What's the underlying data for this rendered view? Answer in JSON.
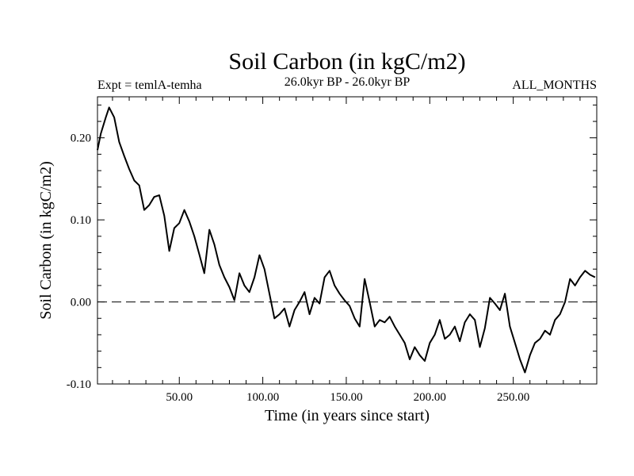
{
  "chart_data": {
    "type": "line",
    "title": "Soil Carbon (in kgC/m2)",
    "subtitle_left": "Expt = temlA-temha",
    "subtitle_center": "26.0kyr BP - 26.0kyr BP",
    "subtitle_right": "ALL_MONTHS",
    "xlabel": "Time (in years since start)",
    "ylabel": "Soil Carbon (in kgC/m2)",
    "xlim": [
      1,
      300
    ],
    "ylim": [
      -0.1,
      0.25
    ],
    "xticks": [
      50,
      100,
      150,
      200,
      250
    ],
    "xtick_labels": [
      "50.00",
      "100.00",
      "150.00",
      "200.00",
      "250.00"
    ],
    "yticks": [
      -0.1,
      0.0,
      0.1,
      0.2
    ],
    "ytick_labels": [
      "-0.10",
      "0.00",
      "0.10",
      "0.20"
    ],
    "zero_line": "dashed",
    "grid": false,
    "line_color": "#000000",
    "series": [
      {
        "x": [
          1,
          3,
          6,
          8,
          11,
          14,
          17,
          20,
          23,
          26,
          29,
          32,
          35,
          38,
          41,
          44,
          47,
          50,
          53,
          56,
          59,
          62,
          65,
          68,
          71,
          74,
          77,
          80,
          83,
          86,
          89,
          92,
          95,
          98,
          101,
          104,
          107,
          110,
          113,
          116,
          119,
          122,
          125,
          128,
          131,
          134,
          137,
          140,
          143,
          146,
          149,
          152,
          155,
          158,
          161,
          164,
          167,
          170,
          173,
          176,
          179,
          182,
          185,
          188,
          191,
          194,
          197,
          200,
          203,
          206,
          209,
          212,
          215,
          218,
          221,
          224,
          227,
          230,
          233,
          236,
          239,
          242,
          245,
          248,
          251,
          254,
          257,
          260,
          263,
          266,
          269,
          272,
          275,
          278,
          281,
          284,
          287,
          290,
          293,
          296,
          299
        ],
        "y": [
          0.185,
          0.205,
          0.225,
          0.237,
          0.225,
          0.195,
          0.178,
          0.162,
          0.148,
          0.142,
          0.112,
          0.118,
          0.128,
          0.13,
          0.105,
          0.062,
          0.09,
          0.096,
          0.112,
          0.098,
          0.08,
          0.058,
          0.035,
          0.088,
          0.07,
          0.045,
          0.03,
          0.018,
          0.002,
          0.035,
          0.02,
          0.012,
          0.03,
          0.057,
          0.04,
          0.01,
          -0.02,
          -0.015,
          -0.008,
          -0.03,
          -0.01,
          0.0,
          0.012,
          -0.015,
          0.005,
          -0.002,
          0.03,
          0.038,
          0.02,
          0.01,
          0.002,
          -0.005,
          -0.02,
          -0.03,
          0.028,
          0.0,
          -0.03,
          -0.022,
          -0.025,
          -0.018,
          -0.03,
          -0.04,
          -0.05,
          -0.07,
          -0.055,
          -0.065,
          -0.072,
          -0.05,
          -0.04,
          -0.022,
          -0.045,
          -0.04,
          -0.03,
          -0.048,
          -0.025,
          -0.015,
          -0.022,
          -0.055,
          -0.032,
          0.005,
          -0.002,
          -0.01,
          0.01,
          -0.03,
          -0.05,
          -0.07,
          -0.086,
          -0.065,
          -0.05,
          -0.045,
          -0.035,
          -0.04,
          -0.022,
          -0.015,
          0.0,
          0.028,
          0.02,
          0.03,
          0.038,
          0.033,
          0.03
        ]
      }
    ]
  }
}
